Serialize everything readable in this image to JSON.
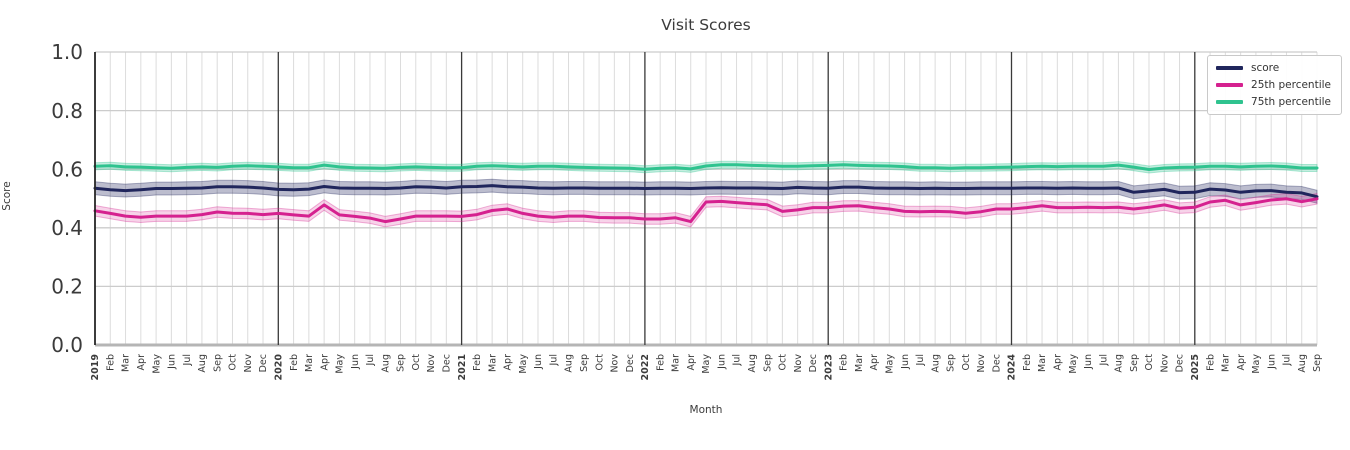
{
  "chart_data": {
    "type": "line",
    "title": "Visit Scores",
    "xlabel": "Month",
    "ylabel": "Score",
    "ylim": [
      0.0,
      1.0
    ],
    "ytick_labels": [
      "0.0",
      "0.2",
      "0.4",
      "0.6",
      "0.8",
      "1.0"
    ],
    "ytick_values": [
      0.0,
      0.2,
      0.4,
      0.6,
      0.8,
      1.0
    ],
    "grid": true,
    "legend_position": "upper right",
    "x_labels": [
      "2019",
      "Feb",
      "Mar",
      "Apr",
      "May",
      "Jun",
      "Jul",
      "Aug",
      "Sep",
      "Oct",
      "Nov",
      "Dec",
      "2020",
      "Feb",
      "Mar",
      "Apr",
      "May",
      "Jun",
      "Jul",
      "Aug",
      "Sep",
      "Oct",
      "Nov",
      "Dec",
      "2021",
      "Feb",
      "Mar",
      "Apr",
      "May",
      "Jun",
      "Jul",
      "Aug",
      "Sep",
      "Oct",
      "Nov",
      "Dec",
      "2022",
      "Feb",
      "Mar",
      "Apr",
      "May",
      "Jun",
      "Jul",
      "Aug",
      "Sep",
      "Oct",
      "Nov",
      "Dec",
      "2023",
      "Feb",
      "Mar",
      "Apr",
      "May",
      "Jun",
      "Jul",
      "Aug",
      "Sep",
      "Oct",
      "Nov",
      "Dec",
      "2024",
      "Feb",
      "Mar",
      "Apr",
      "May",
      "Jun",
      "Jul",
      "Aug",
      "Sep",
      "Oct",
      "Nov",
      "Dec",
      "2025",
      "Feb",
      "Mar",
      "Apr",
      "May",
      "Jun",
      "Jul",
      "Aug",
      "Sep"
    ],
    "year_tick_indices": [
      0,
      12,
      24,
      36,
      48,
      60,
      72
    ],
    "year_line_indices": [
      12,
      24,
      36,
      48,
      60,
      72
    ],
    "series": [
      {
        "name": "score",
        "color": "#20265c",
        "band_opacity": 0.3,
        "band_halfwidth": 0.022,
        "values": [
          0.535,
          0.53,
          0.527,
          0.53,
          0.534,
          0.534,
          0.535,
          0.536,
          0.54,
          0.54,
          0.539,
          0.536,
          0.531,
          0.53,
          0.532,
          0.541,
          0.536,
          0.535,
          0.535,
          0.534,
          0.536,
          0.54,
          0.539,
          0.536,
          0.54,
          0.541,
          0.544,
          0.54,
          0.539,
          0.536,
          0.535,
          0.536,
          0.536,
          0.535,
          0.535,
          0.535,
          0.534,
          0.535,
          0.535,
          0.534,
          0.536,
          0.537,
          0.536,
          0.536,
          0.535,
          0.534,
          0.538,
          0.536,
          0.535,
          0.539,
          0.539,
          0.536,
          0.535,
          0.535,
          0.534,
          0.535,
          0.534,
          0.534,
          0.535,
          0.535,
          0.535,
          0.536,
          0.536,
          0.535,
          0.536,
          0.535,
          0.535,
          0.536,
          0.521,
          0.526,
          0.531,
          0.52,
          0.521,
          0.532,
          0.529,
          0.521,
          0.526,
          0.527,
          0.521,
          0.519,
          0.506
        ]
      },
      {
        "name": "25th percentile",
        "color": "#d5218f",
        "band_opacity": 0.2,
        "band_halfwidth": 0.018,
        "values": [
          0.458,
          0.449,
          0.44,
          0.436,
          0.44,
          0.44,
          0.44,
          0.445,
          0.454,
          0.45,
          0.449,
          0.445,
          0.449,
          0.444,
          0.44,
          0.478,
          0.444,
          0.439,
          0.433,
          0.421,
          0.43,
          0.44,
          0.44,
          0.44,
          0.439,
          0.445,
          0.459,
          0.464,
          0.449,
          0.44,
          0.436,
          0.44,
          0.44,
          0.435,
          0.434,
          0.434,
          0.43,
          0.43,
          0.434,
          0.421,
          0.488,
          0.49,
          0.486,
          0.482,
          0.479,
          0.456,
          0.461,
          0.469,
          0.469,
          0.474,
          0.475,
          0.469,
          0.464,
          0.456,
          0.455,
          0.456,
          0.455,
          0.45,
          0.455,
          0.464,
          0.464,
          0.469,
          0.475,
          0.469,
          0.469,
          0.47,
          0.469,
          0.47,
          0.464,
          0.47,
          0.478,
          0.467,
          0.47,
          0.488,
          0.494,
          0.478,
          0.486,
          0.495,
          0.499,
          0.489,
          0.499
        ]
      },
      {
        "name": "75th percentile",
        "color": "#2fc38f",
        "band_opacity": 0.28,
        "band_halfwidth": 0.012,
        "values": [
          0.61,
          0.612,
          0.608,
          0.607,
          0.605,
          0.603,
          0.606,
          0.608,
          0.606,
          0.61,
          0.612,
          0.61,
          0.608,
          0.605,
          0.605,
          0.614,
          0.608,
          0.605,
          0.604,
          0.603,
          0.606,
          0.608,
          0.606,
          0.605,
          0.605,
          0.61,
          0.612,
          0.61,
          0.608,
          0.61,
          0.61,
          0.608,
          0.606,
          0.605,
          0.604,
          0.603,
          0.6,
          0.603,
          0.605,
          0.601,
          0.611,
          0.615,
          0.615,
          0.613,
          0.612,
          0.61,
          0.61,
          0.612,
          0.613,
          0.615,
          0.613,
          0.612,
          0.611,
          0.609,
          0.605,
          0.605,
          0.603,
          0.605,
          0.605,
          0.606,
          0.607,
          0.609,
          0.61,
          0.609,
          0.61,
          0.61,
          0.61,
          0.614,
          0.607,
          0.599,
          0.604,
          0.606,
          0.607,
          0.61,
          0.61,
          0.608,
          0.61,
          0.611,
          0.609,
          0.604,
          0.604
        ]
      }
    ],
    "colors": {
      "grid_vertical": "#dcdcdc",
      "grid_horizontal": "#cccccc",
      "baseline": "#b5b5b5",
      "year_line": "#3a3a3a",
      "left_spine": "#262626",
      "tick_text": "#3b3b3b"
    }
  }
}
